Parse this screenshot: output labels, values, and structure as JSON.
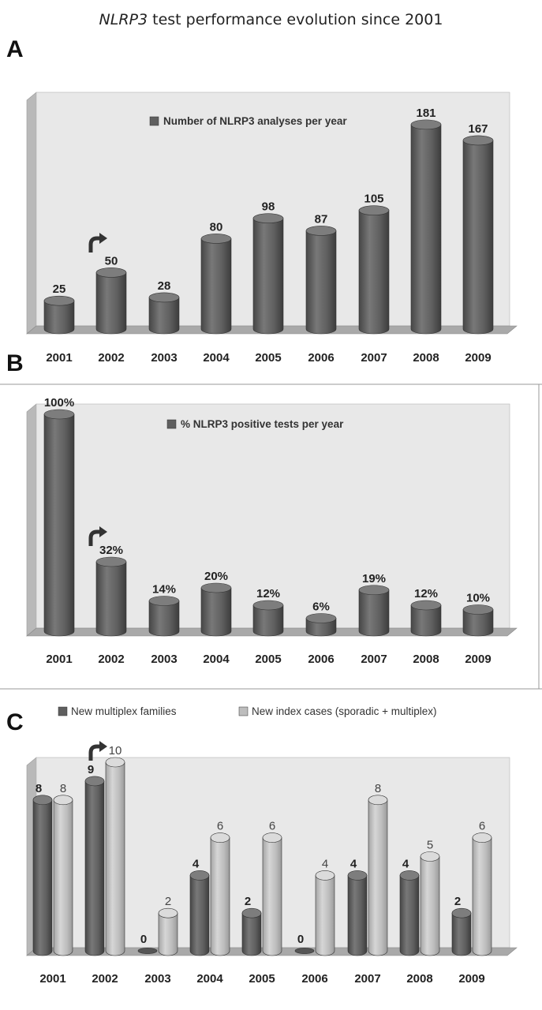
{
  "figure": {
    "title_italic": "NLRP3",
    "title_rest": " test performance evolution since 2001",
    "panel_letters": [
      "A",
      "B",
      "C"
    ]
  },
  "colors": {
    "dark_bar": "#5f5f5f",
    "light_bar": "#bdbdbd",
    "wall": "#e8e8e8",
    "floor": "#a9a9a9"
  },
  "chart_data": [
    {
      "panel": "A",
      "type": "bar",
      "categories": [
        "2001",
        "2002",
        "2003",
        "2004",
        "2005",
        "2006",
        "2007",
        "2008",
        "2009"
      ],
      "series": [
        {
          "name": "Number of NLRP3 analyses per year",
          "values": [
            25,
            50,
            28,
            80,
            98,
            87,
            105,
            181,
            167
          ],
          "labels": [
            "25",
            "50",
            "28",
            "80",
            "98",
            "87",
            "105",
            "181",
            "167"
          ]
        }
      ],
      "ylim": [
        0,
        190
      ],
      "annotations": [
        {
          "type": "arrow",
          "category": "2002"
        }
      ],
      "legend": "top-center"
    },
    {
      "panel": "B",
      "type": "bar",
      "categories": [
        "2001",
        "2002",
        "2003",
        "2004",
        "2005",
        "2006",
        "2007",
        "2008",
        "2009"
      ],
      "series": [
        {
          "name": "% NLRP3 positive tests per year",
          "values": [
            100,
            32,
            14,
            20,
            12,
            6,
            19,
            12,
            10
          ],
          "labels": [
            "100%",
            "32%",
            "14%",
            "20%",
            "12%",
            "6%",
            "19%",
            "12%",
            "10%"
          ]
        }
      ],
      "ylim": [
        0,
        100
      ],
      "annotations": [
        {
          "type": "arrow",
          "category": "2002"
        }
      ],
      "legend": "top-center"
    },
    {
      "panel": "C",
      "type": "bar",
      "categories": [
        "2001",
        "2002",
        "2003",
        "2004",
        "2005",
        "2006",
        "2007",
        "2008",
        "2009"
      ],
      "series": [
        {
          "name": "New multiplex families",
          "values": [
            8,
            9,
            0,
            4,
            2,
            0,
            4,
            4,
            2
          ],
          "labels": [
            "8",
            "9",
            "0",
            "4",
            "2",
            "0",
            "4",
            "4",
            "2"
          ]
        },
        {
          "name": "New index cases (sporadic + multiplex)",
          "values": [
            8,
            10,
            2,
            6,
            6,
            4,
            8,
            5,
            6
          ],
          "labels": [
            "8",
            "10",
            "2",
            "6",
            "6",
            "4",
            "8",
            "5",
            "6"
          ]
        }
      ],
      "ylim": [
        0,
        10
      ],
      "annotations": [
        {
          "type": "arrow",
          "category": "2002"
        }
      ],
      "legend": "top-left"
    }
  ]
}
